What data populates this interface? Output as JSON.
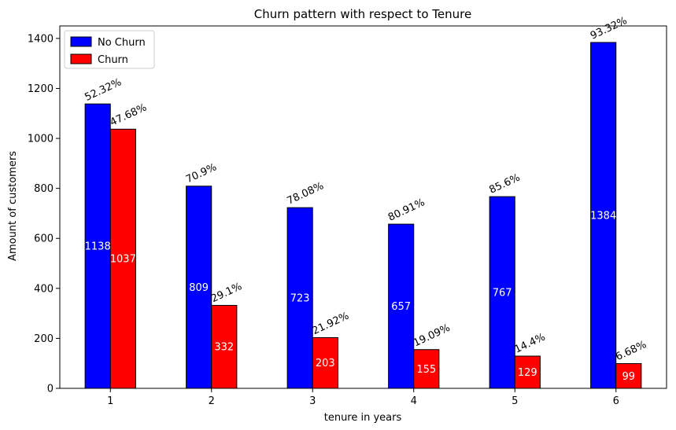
{
  "chart_data": {
    "type": "bar",
    "title": "Churn pattern with respect to Tenure",
    "xlabel": "tenure in years",
    "ylabel": "Amount of customers",
    "categories": [
      "1",
      "2",
      "3",
      "4",
      "5",
      "6"
    ],
    "ylim": [
      0,
      1450
    ],
    "yticks": [
      0,
      200,
      400,
      600,
      800,
      1000,
      1200,
      1400
    ],
    "legend_position": "top-left",
    "grid": false,
    "series": [
      {
        "name": "No Churn",
        "color": "#0000ff",
        "values": [
          1138,
          809,
          723,
          657,
          767,
          1384
        ],
        "percent_labels": [
          "52.32%",
          "70.9%",
          "78.08%",
          "80.91%",
          "85.6%",
          "93.32%"
        ]
      },
      {
        "name": "Churn",
        "color": "#ff0000",
        "values": [
          1037,
          332,
          203,
          155,
          129,
          99
        ],
        "percent_labels": [
          "47.68%",
          "29.1%",
          "21.92%",
          "19.09%",
          "14.4%",
          "6.68%"
        ]
      }
    ]
  }
}
